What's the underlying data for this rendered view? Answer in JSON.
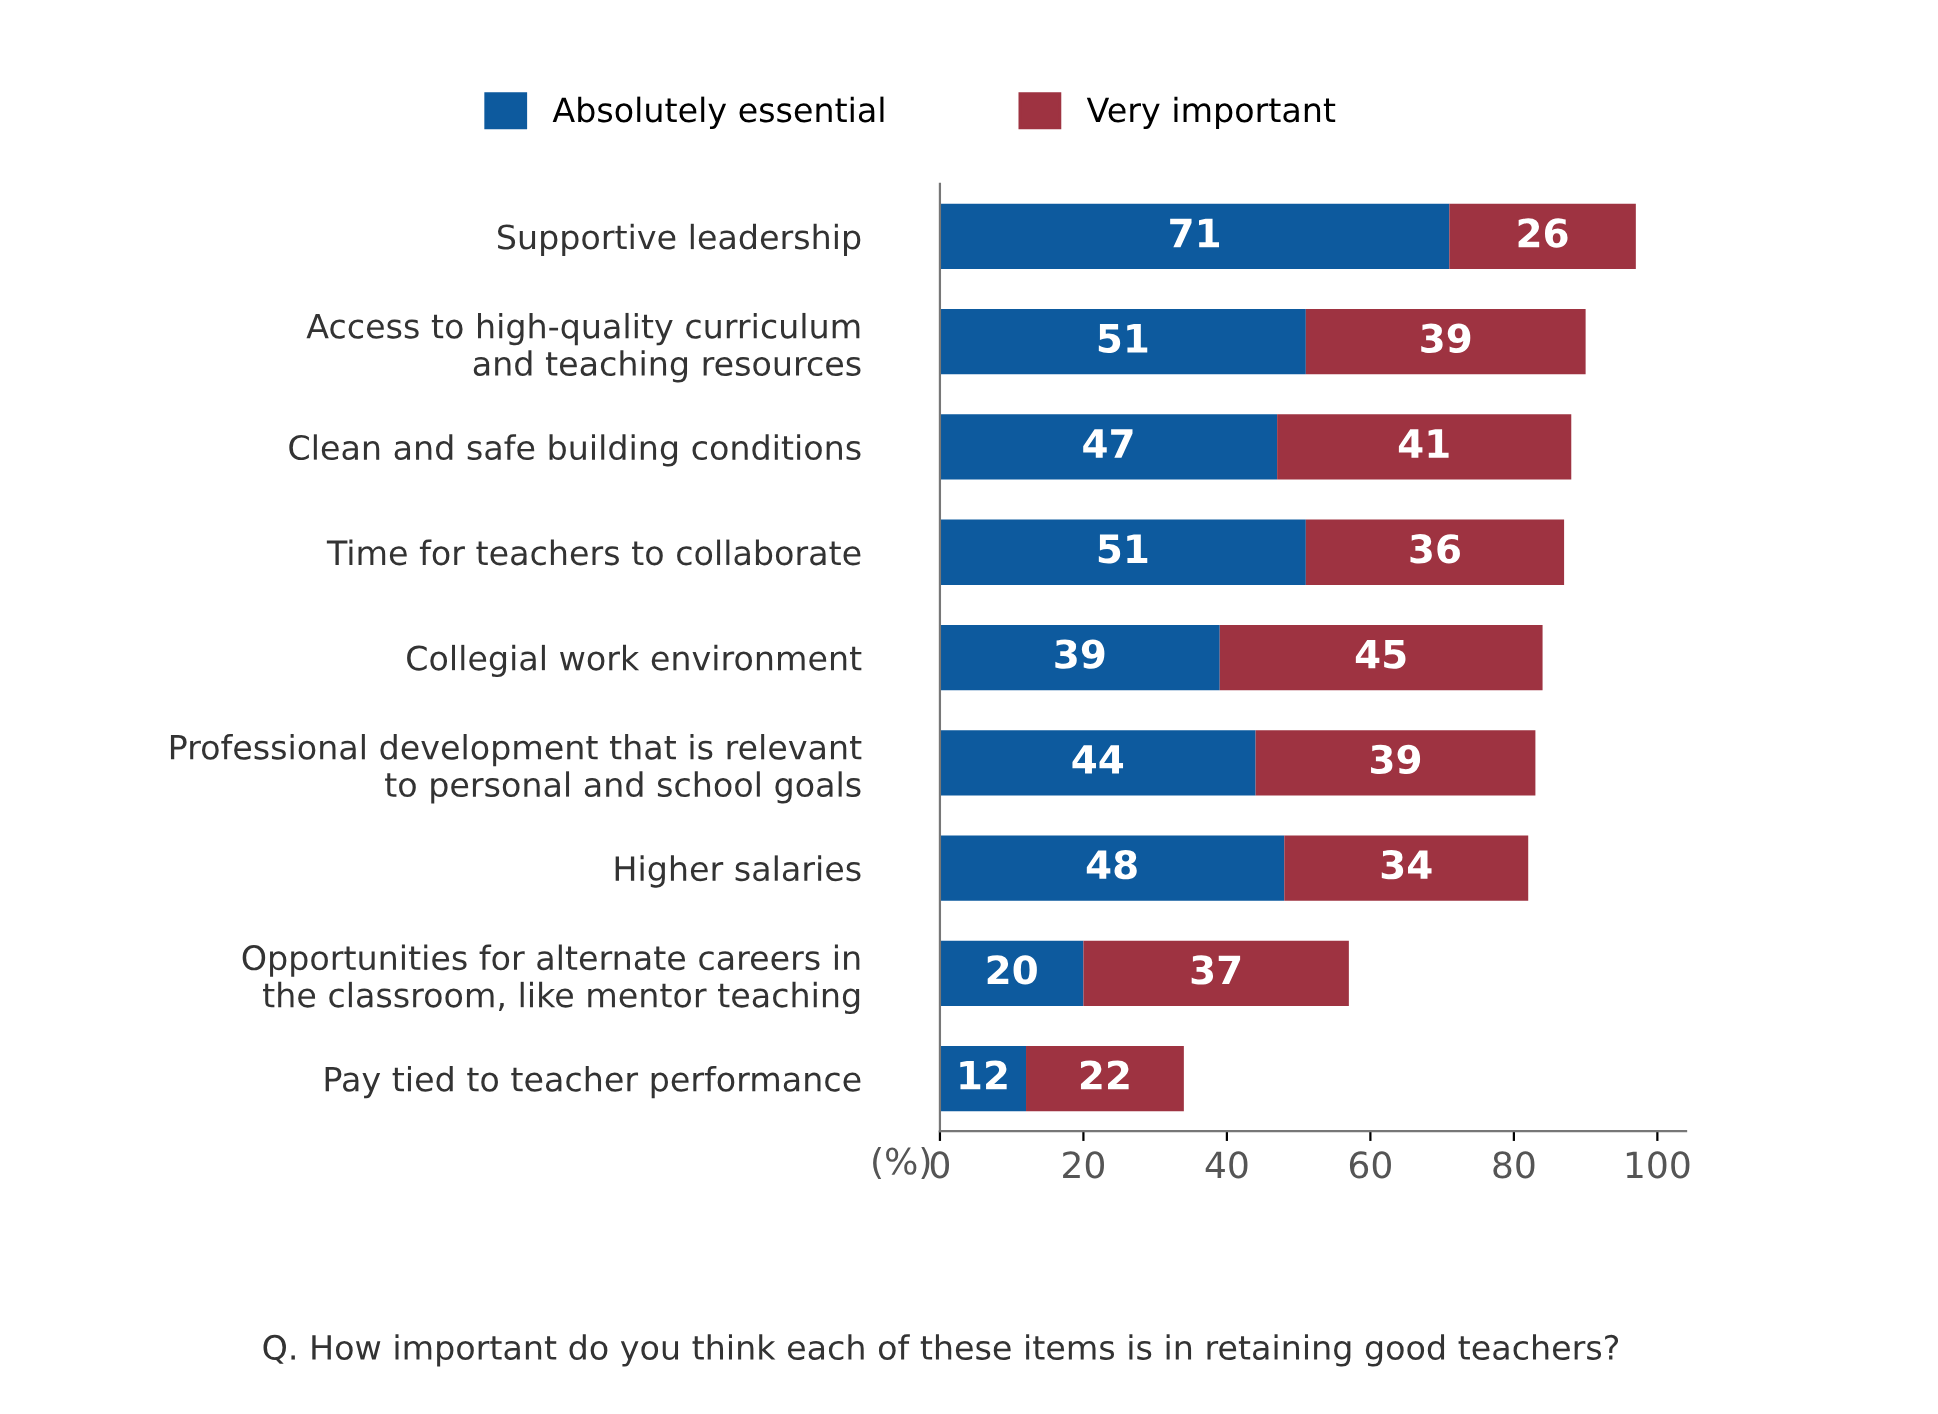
{
  "chart_data": {
    "type": "bar",
    "orientation": "horizontal",
    "stacked": true,
    "categories": [
      "Supportive leadership",
      "Access to high-quality curriculum\nand teaching resources",
      "Clean and safe building conditions",
      "Time for teachers to collaborate",
      "Collegial work environment",
      "Professional development that is relevant\nto personal and school goals",
      "Higher salaries",
      "Opportunities for alternate careers in\nthe classroom, like mentor teaching",
      "Pay tied to teacher performance"
    ],
    "series": [
      {
        "name": "Absolutely essential",
        "color": "#0d5a9e",
        "values": [
          71,
          51,
          47,
          51,
          39,
          44,
          48,
          20,
          12
        ]
      },
      {
        "name": "Very important",
        "color": "#9e3341",
        "values": [
          26,
          39,
          41,
          36,
          45,
          39,
          34,
          37,
          22
        ]
      }
    ],
    "xlabel": "(%)",
    "xlim": [
      0,
      104
    ],
    "xticks": [
      0,
      20,
      40,
      60,
      80,
      100
    ],
    "data_labels": true,
    "legend": "top",
    "grid": false,
    "annotations": [
      "Q. How important do you think each of these items is in retaining good teachers?"
    ]
  }
}
